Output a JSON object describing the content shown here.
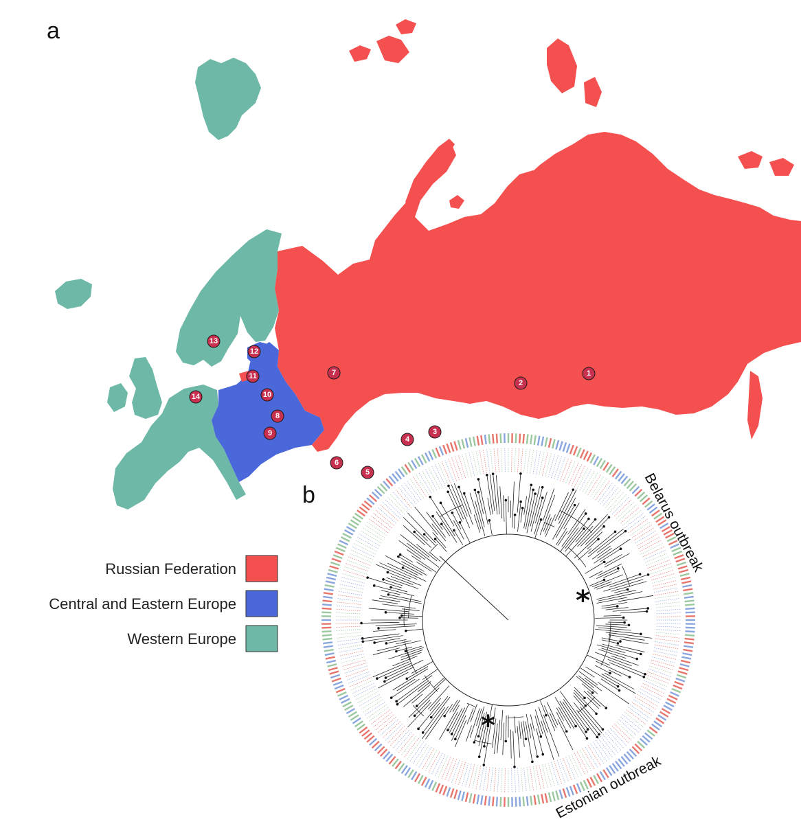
{
  "figure": {
    "panel_a_label": "a",
    "panel_b_label": "b"
  },
  "regions": [
    {
      "key": "russia",
      "label": "Russian Federation",
      "color": "#f55050"
    },
    {
      "key": "cee",
      "label": "Central and Eastern Europe",
      "color": "#4a68d9"
    },
    {
      "key": "west",
      "label": "Western Europe",
      "color": "#6db8a6"
    }
  ],
  "map_markers": [
    "1",
    "2",
    "3",
    "4",
    "5",
    "6",
    "7",
    "8",
    "9",
    "10",
    "11",
    "12",
    "13",
    "14"
  ],
  "marker_color": "#c8304f",
  "tree": {
    "annotations": {
      "belarus": "Belarus outbreak",
      "estonian": "Estonian outbreak"
    },
    "star_symbol": "*",
    "leaf_colors": {
      "red": "#e8756c",
      "blue": "#8aa6df",
      "green": "#9cc8a0"
    }
  }
}
